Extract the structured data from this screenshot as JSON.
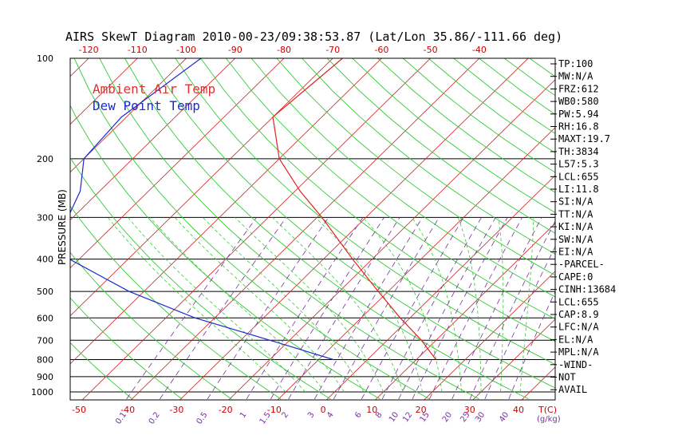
{
  "title": "AIRS SkewT Diagram 2010-00-23/09:38:53.87 (Lat/Lon 35.86/-111.66 deg)",
  "ylabel": "PRESSURE (MB)",
  "legend": [
    {
      "label": "Ambient Air Temp",
      "color": "#e03030"
    },
    {
      "label": "Dew Point Temp",
      "color": "#1a2bd0"
    }
  ],
  "colors": {
    "isobar": "#000000",
    "isotherm": "#cc2222",
    "dry_adiabat": "#33cc33",
    "moist_adiabat": "#33cc33",
    "mixing_ratio": "#7a2fa0",
    "temperature": "#e02020",
    "dewpoint": "#1a2bd0"
  },
  "top_temp_ticks": [
    "-120",
    "-110",
    "-100",
    "-90",
    "-80",
    "-70",
    "-60",
    "-50",
    "-40"
  ],
  "bottom_temp_ticks": [
    "-50",
    "-40",
    "-30",
    "-20",
    "-10",
    "0",
    "10",
    "20",
    "30",
    "40"
  ],
  "bottom_temp_unit": "T(C)",
  "mixing_ratio_ticks": [
    "0.1",
    "0.2",
    "0.5",
    "1",
    "1.5",
    "2",
    "3",
    "4",
    "6",
    "8",
    "10",
    "12",
    "15",
    "20",
    "25",
    "30",
    "40"
  ],
  "mixing_ratio_unit": "(g/kg)",
  "stats": [
    "TP:100",
    "MW:N/A",
    "FRZ:612",
    "WB0:580",
    "PW:5.94",
    "RH:16.8",
    "MAXT:19.7",
    "TH:3834",
    "L57:5.3",
    "LCL:655",
    "LI:11.8",
    "SI:N/A",
    "TT:N/A",
    "KI:N/A",
    "SW:N/A",
    "EI:N/A",
    "-PARCEL-",
    "CAPE:0",
    "CINH:13684",
    "LCL:655",
    "CAP:8.9",
    "LFC:N/A",
    "EL:N/A",
    "MPL:N/A",
    "-WIND-",
    "NOT",
    "AVAIL"
  ],
  "chart_data": {
    "type": "line",
    "title": "AIRS SkewT Diagram 2010-00-23/09:38:53.87 (Lat/Lon 35.86/-111.66 deg)",
    "xlabel": "T(C)",
    "ylabel": "PRESSURE (MB)",
    "y_scale": "log",
    "ylim": [
      1050,
      100
    ],
    "pressure_ticks": [
      100,
      200,
      300,
      400,
      500,
      600,
      700,
      800,
      900,
      1000
    ],
    "series": [
      {
        "name": "Ambient Air Temp",
        "pressure": [
          100,
          150,
          200,
          250,
          300,
          400,
          500,
          600,
          700,
          800
        ],
        "temperature_c": [
          -68,
          -70,
          -60,
          -49,
          -39,
          -24,
          -12,
          -2,
          7,
          14
        ]
      },
      {
        "name": "Dew Point Temp",
        "pressure": [
          100,
          150,
          200,
          250,
          300,
          400,
          500,
          600,
          700,
          800
        ],
        "temperature_c": [
          -97,
          -101,
          -100,
          -94,
          -91,
          -82,
          -63,
          -44,
          -24,
          -7
        ]
      }
    ]
  }
}
